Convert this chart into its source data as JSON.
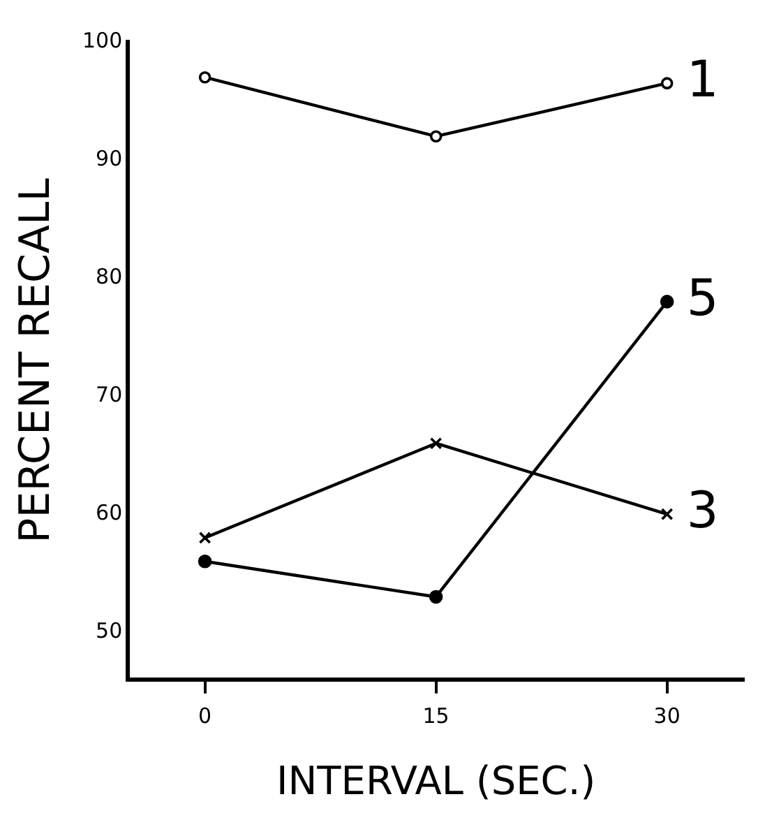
{
  "chart_data": {
    "type": "line",
    "xlabel": "INTERVAL (SEC.)",
    "ylabel": "PERCENT RECALL",
    "x": [
      0,
      15,
      30
    ],
    "series": [
      {
        "name": "1",
        "color": "#000000",
        "marker": "circle",
        "values": [
          97,
          92,
          96.5
        ]
      },
      {
        "name": "3",
        "color": "#000000",
        "marker": "cross",
        "values": [
          58,
          66,
          60
        ]
      },
      {
        "name": "5",
        "color": "#000000",
        "marker": "dot",
        "values": [
          56,
          53,
          78
        ]
      }
    ],
    "xlim": [
      -5,
      35
    ],
    "xticks": [
      0,
      15,
      30
    ],
    "ylim": [
      46,
      100
    ],
    "yticks": [
      50,
      60,
      70,
      80,
      90,
      100
    ],
    "grid": false,
    "legend": false
  }
}
